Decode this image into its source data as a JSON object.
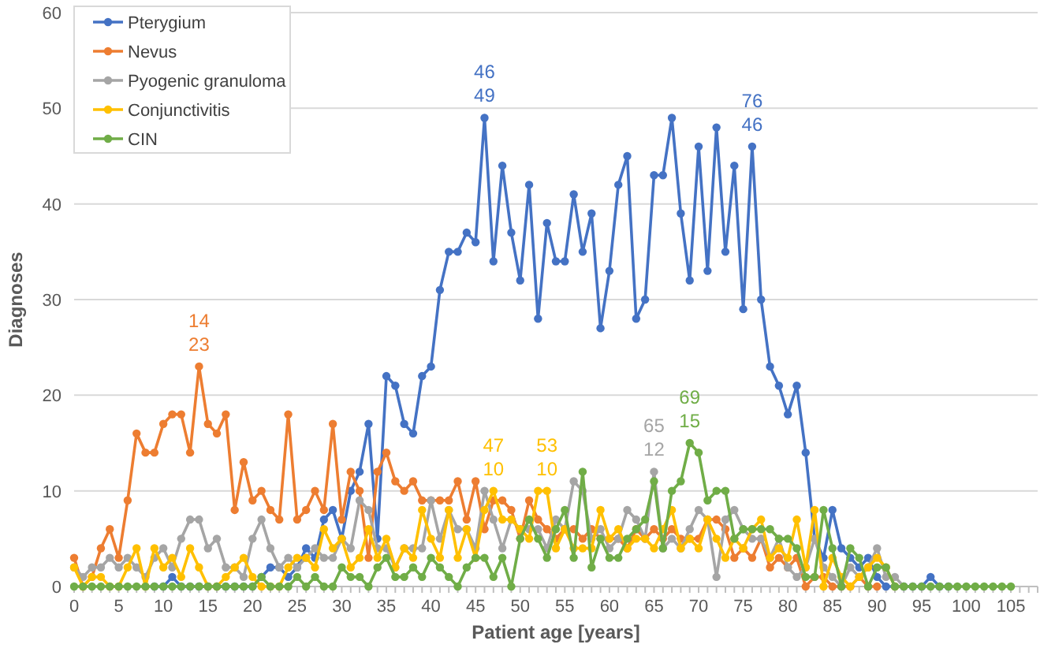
{
  "chart_data": {
    "type": "line",
    "xlabel": "Patient age [years]",
    "ylabel": "Diagnoses",
    "x": [
      0,
      1,
      2,
      3,
      4,
      5,
      6,
      7,
      8,
      9,
      10,
      11,
      12,
      13,
      14,
      15,
      16,
      17,
      18,
      19,
      20,
      21,
      22,
      23,
      24,
      25,
      26,
      27,
      28,
      29,
      30,
      31,
      32,
      33,
      34,
      35,
      36,
      37,
      38,
      39,
      40,
      41,
      42,
      43,
      44,
      45,
      46,
      47,
      48,
      49,
      50,
      51,
      52,
      53,
      54,
      55,
      56,
      57,
      58,
      59,
      60,
      61,
      62,
      63,
      64,
      65,
      66,
      67,
      68,
      69,
      70,
      71,
      72,
      73,
      74,
      75,
      76,
      77,
      78,
      79,
      80,
      81,
      82,
      83,
      84,
      85,
      86,
      87,
      88,
      89,
      90,
      91,
      92,
      93,
      94,
      95,
      96,
      97,
      98,
      99,
      100,
      101,
      102,
      103,
      104,
      105
    ],
    "xlim": [
      0,
      108
    ],
    "xticks": [
      0,
      5,
      10,
      15,
      20,
      25,
      30,
      35,
      40,
      45,
      50,
      55,
      60,
      65,
      70,
      75,
      80,
      85,
      90,
      95,
      100,
      105
    ],
    "ylim": [
      0,
      60
    ],
    "yticks": [
      0,
      10,
      20,
      30,
      40,
      50,
      60
    ],
    "grid": "y",
    "legend": "top left",
    "marker": "circle",
    "series": [
      {
        "name": "Pterygium",
        "color": "#4472c4",
        "x": [
          9,
          10,
          11,
          12,
          13,
          14,
          15,
          16,
          17,
          18,
          19,
          20,
          21,
          22,
          23,
          24,
          25,
          26,
          27,
          28,
          29,
          30,
          31,
          32,
          33,
          34,
          35,
          36,
          37,
          38,
          39,
          40,
          41,
          42,
          43,
          44,
          45,
          46,
          47,
          48,
          49,
          50,
          51,
          52,
          53,
          54,
          55,
          56,
          57,
          58,
          59,
          60,
          61,
          62,
          63,
          64,
          65,
          66,
          67,
          68,
          69,
          70,
          71,
          72,
          73,
          74,
          75,
          76,
          77,
          78,
          79,
          80,
          81,
          82,
          83,
          84,
          85,
          86,
          87,
          88,
          89,
          90,
          91,
          92,
          93,
          94,
          95,
          96,
          97,
          98
        ],
        "values": [
          0,
          0,
          1,
          0,
          0,
          0,
          0,
          0,
          0,
          0,
          0,
          0,
          1,
          2,
          2,
          1,
          2,
          4,
          3,
          7,
          8,
          5,
          10,
          12,
          17,
          5,
          22,
          21,
          17,
          16,
          22,
          23,
          31,
          35,
          35,
          37,
          36,
          49,
          34,
          44,
          37,
          32,
          42,
          28,
          38,
          34,
          34,
          41,
          35,
          39,
          27,
          33,
          42,
          45,
          28,
          30,
          43,
          43,
          49,
          39,
          32,
          46,
          33,
          48,
          35,
          44,
          29,
          46,
          30,
          23,
          21,
          18,
          21,
          14,
          5,
          3,
          8,
          4,
          3,
          2,
          3,
          1,
          0,
          0,
          0,
          0,
          0,
          1,
          0,
          0
        ]
      },
      {
        "name": "Nevus",
        "color": "#ed7d31",
        "x": [
          0,
          1,
          2,
          3,
          4,
          5,
          6,
          7,
          8,
          9,
          10,
          11,
          12,
          13,
          14,
          15,
          16,
          17,
          18,
          19,
          20,
          21,
          22,
          23,
          24,
          25,
          26,
          27,
          28,
          29,
          30,
          31,
          32,
          33,
          34,
          35,
          36,
          37,
          38,
          39,
          40,
          41,
          42,
          43,
          44,
          45,
          46,
          47,
          48,
          49,
          50,
          51,
          52,
          53,
          54,
          55,
          56,
          57,
          58,
          59,
          60,
          61,
          62,
          63,
          64,
          65,
          66,
          67,
          68,
          69,
          70,
          71,
          72,
          73,
          74,
          75,
          76,
          77,
          78,
          79,
          80,
          81,
          82,
          83,
          84,
          85,
          86,
          87,
          88,
          89,
          90
        ],
        "values": [
          3,
          0,
          1,
          4,
          6,
          3,
          9,
          16,
          14,
          14,
          17,
          18,
          18,
          14,
          23,
          17,
          16,
          18,
          8,
          13,
          9,
          10,
          8,
          7,
          18,
          7,
          8,
          10,
          8,
          17,
          7,
          12,
          10,
          3,
          12,
          14,
          11,
          10,
          11,
          9,
          9,
          9,
          9,
          11,
          7,
          11,
          6,
          9,
          9,
          8,
          5,
          9,
          7,
          6,
          5,
          6,
          6,
          5,
          6,
          5,
          5,
          5,
          4,
          6,
          5,
          6,
          5,
          6,
          5,
          5,
          5,
          7,
          7,
          6,
          3,
          4,
          3,
          5,
          2,
          3,
          2,
          3,
          0,
          1,
          1,
          0,
          0,
          0,
          1,
          0,
          0
        ]
      },
      {
        "name": "Pyogenic granuloma",
        "color": "#a5a5a5",
        "x": [
          0,
          1,
          2,
          3,
          4,
          5,
          6,
          7,
          8,
          9,
          10,
          11,
          12,
          13,
          14,
          15,
          16,
          17,
          18,
          19,
          20,
          21,
          22,
          23,
          24,
          25,
          26,
          27,
          28,
          29,
          30,
          31,
          32,
          33,
          34,
          35,
          36,
          37,
          38,
          39,
          40,
          41,
          42,
          43,
          44,
          45,
          46,
          47,
          48,
          49,
          50,
          51,
          52,
          53,
          54,
          55,
          56,
          57,
          58,
          59,
          60,
          61,
          62,
          63,
          64,
          65,
          66,
          67,
          68,
          69,
          70,
          71,
          72,
          73,
          74,
          75,
          76,
          77,
          78,
          79,
          80,
          81,
          82,
          83,
          84,
          85,
          86,
          87,
          88,
          89,
          90,
          91,
          92,
          93
        ],
        "values": [
          2,
          1,
          2,
          2,
          3,
          2,
          3,
          2,
          1,
          3,
          4,
          2,
          5,
          7,
          7,
          4,
          5,
          2,
          2,
          1,
          5,
          7,
          4,
          2,
          3,
          2,
          3,
          4,
          3,
          3,
          5,
          4,
          9,
          8,
          4,
          4,
          2,
          4,
          4,
          4,
          9,
          5,
          8,
          6,
          6,
          4,
          10,
          7,
          4,
          7,
          6,
          6,
          6,
          4,
          7,
          6,
          11,
          10,
          5,
          6,
          4,
          5,
          8,
          7,
          5,
          12,
          4,
          5,
          4,
          6,
          8,
          7,
          1,
          7,
          8,
          6,
          5,
          5,
          3,
          5,
          2,
          1,
          2,
          5,
          2,
          1,
          0,
          2,
          1,
          2,
          4,
          1,
          1,
          0
        ]
      },
      {
        "name": "Conjunctivitis",
        "color": "#ffc000",
        "x": [
          0,
          1,
          2,
          3,
          4,
          5,
          6,
          7,
          8,
          9,
          10,
          11,
          12,
          13,
          14,
          15,
          16,
          17,
          18,
          19,
          20,
          21,
          22,
          23,
          24,
          25,
          26,
          27,
          28,
          29,
          30,
          31,
          32,
          33,
          34,
          35,
          36,
          37,
          38,
          39,
          40,
          41,
          42,
          43,
          44,
          45,
          46,
          47,
          48,
          49,
          50,
          51,
          52,
          53,
          54,
          55,
          56,
          57,
          58,
          59,
          60,
          61,
          62,
          63,
          64,
          65,
          66,
          67,
          68,
          69,
          70,
          71,
          72,
          73,
          74,
          75,
          76,
          77,
          78,
          79,
          80,
          81,
          82,
          83,
          84,
          85,
          86,
          87,
          88,
          89,
          90,
          91,
          92
        ],
        "values": [
          2,
          0,
          1,
          1,
          0,
          0,
          2,
          4,
          0,
          4,
          2,
          3,
          1,
          4,
          2,
          0,
          0,
          1,
          2,
          3,
          1,
          0,
          0,
          0,
          2,
          3,
          3,
          2,
          6,
          4,
          5,
          2,
          3,
          6,
          3,
          5,
          2,
          4,
          3,
          8,
          5,
          3,
          8,
          3,
          6,
          3,
          8,
          10,
          7,
          7,
          6,
          5,
          10,
          10,
          4,
          6,
          4,
          4,
          4,
          8,
          5,
          6,
          4,
          5,
          5,
          4,
          6,
          8,
          4,
          5,
          4,
          7,
          5,
          3,
          5,
          4,
          6,
          7,
          3,
          4,
          3,
          7,
          2,
          8,
          0,
          3,
          1,
          0,
          1,
          2,
          3,
          2,
          0
        ]
      },
      {
        "name": "CIN",
        "color": "#70ad47",
        "values": [
          0,
          0,
          0,
          0,
          0,
          0,
          0,
          0,
          0,
          0,
          0,
          0,
          0,
          0,
          0,
          0,
          0,
          0,
          0,
          0,
          0,
          1,
          0,
          0,
          0,
          1,
          0,
          1,
          0,
          0,
          2,
          1,
          1,
          0,
          2,
          3,
          1,
          1,
          2,
          1,
          3,
          2,
          1,
          0,
          2,
          3,
          3,
          1,
          3,
          0,
          5,
          7,
          5,
          3,
          6,
          8,
          3,
          12,
          2,
          5,
          3,
          3,
          5,
          6,
          7,
          11,
          4,
          10,
          11,
          15,
          14,
          9,
          10,
          10,
          5,
          6,
          6,
          6,
          6,
          5,
          5,
          4,
          1,
          1,
          8,
          4,
          0,
          4,
          3,
          0,
          2,
          2,
          0,
          0,
          0,
          0,
          0,
          0,
          0,
          0,
          0,
          0,
          0,
          0,
          0,
          0
        ]
      }
    ],
    "annotations": [
      {
        "text": "14\n23",
        "x": 14,
        "y": 23
      },
      {
        "text": "46\n49",
        "x": 46,
        "y": 49
      },
      {
        "text": "47\n10",
        "x": 47,
        "y": 10
      },
      {
        "text": "53\n10",
        "x": 53,
        "y": 10
      },
      {
        "text": "65\n12",
        "x": 65,
        "y": 12
      },
      {
        "text": "69\n15",
        "x": 69,
        "y": 15
      },
      {
        "text": "76\n46",
        "x": 76,
        "y": 46
      }
    ]
  }
}
